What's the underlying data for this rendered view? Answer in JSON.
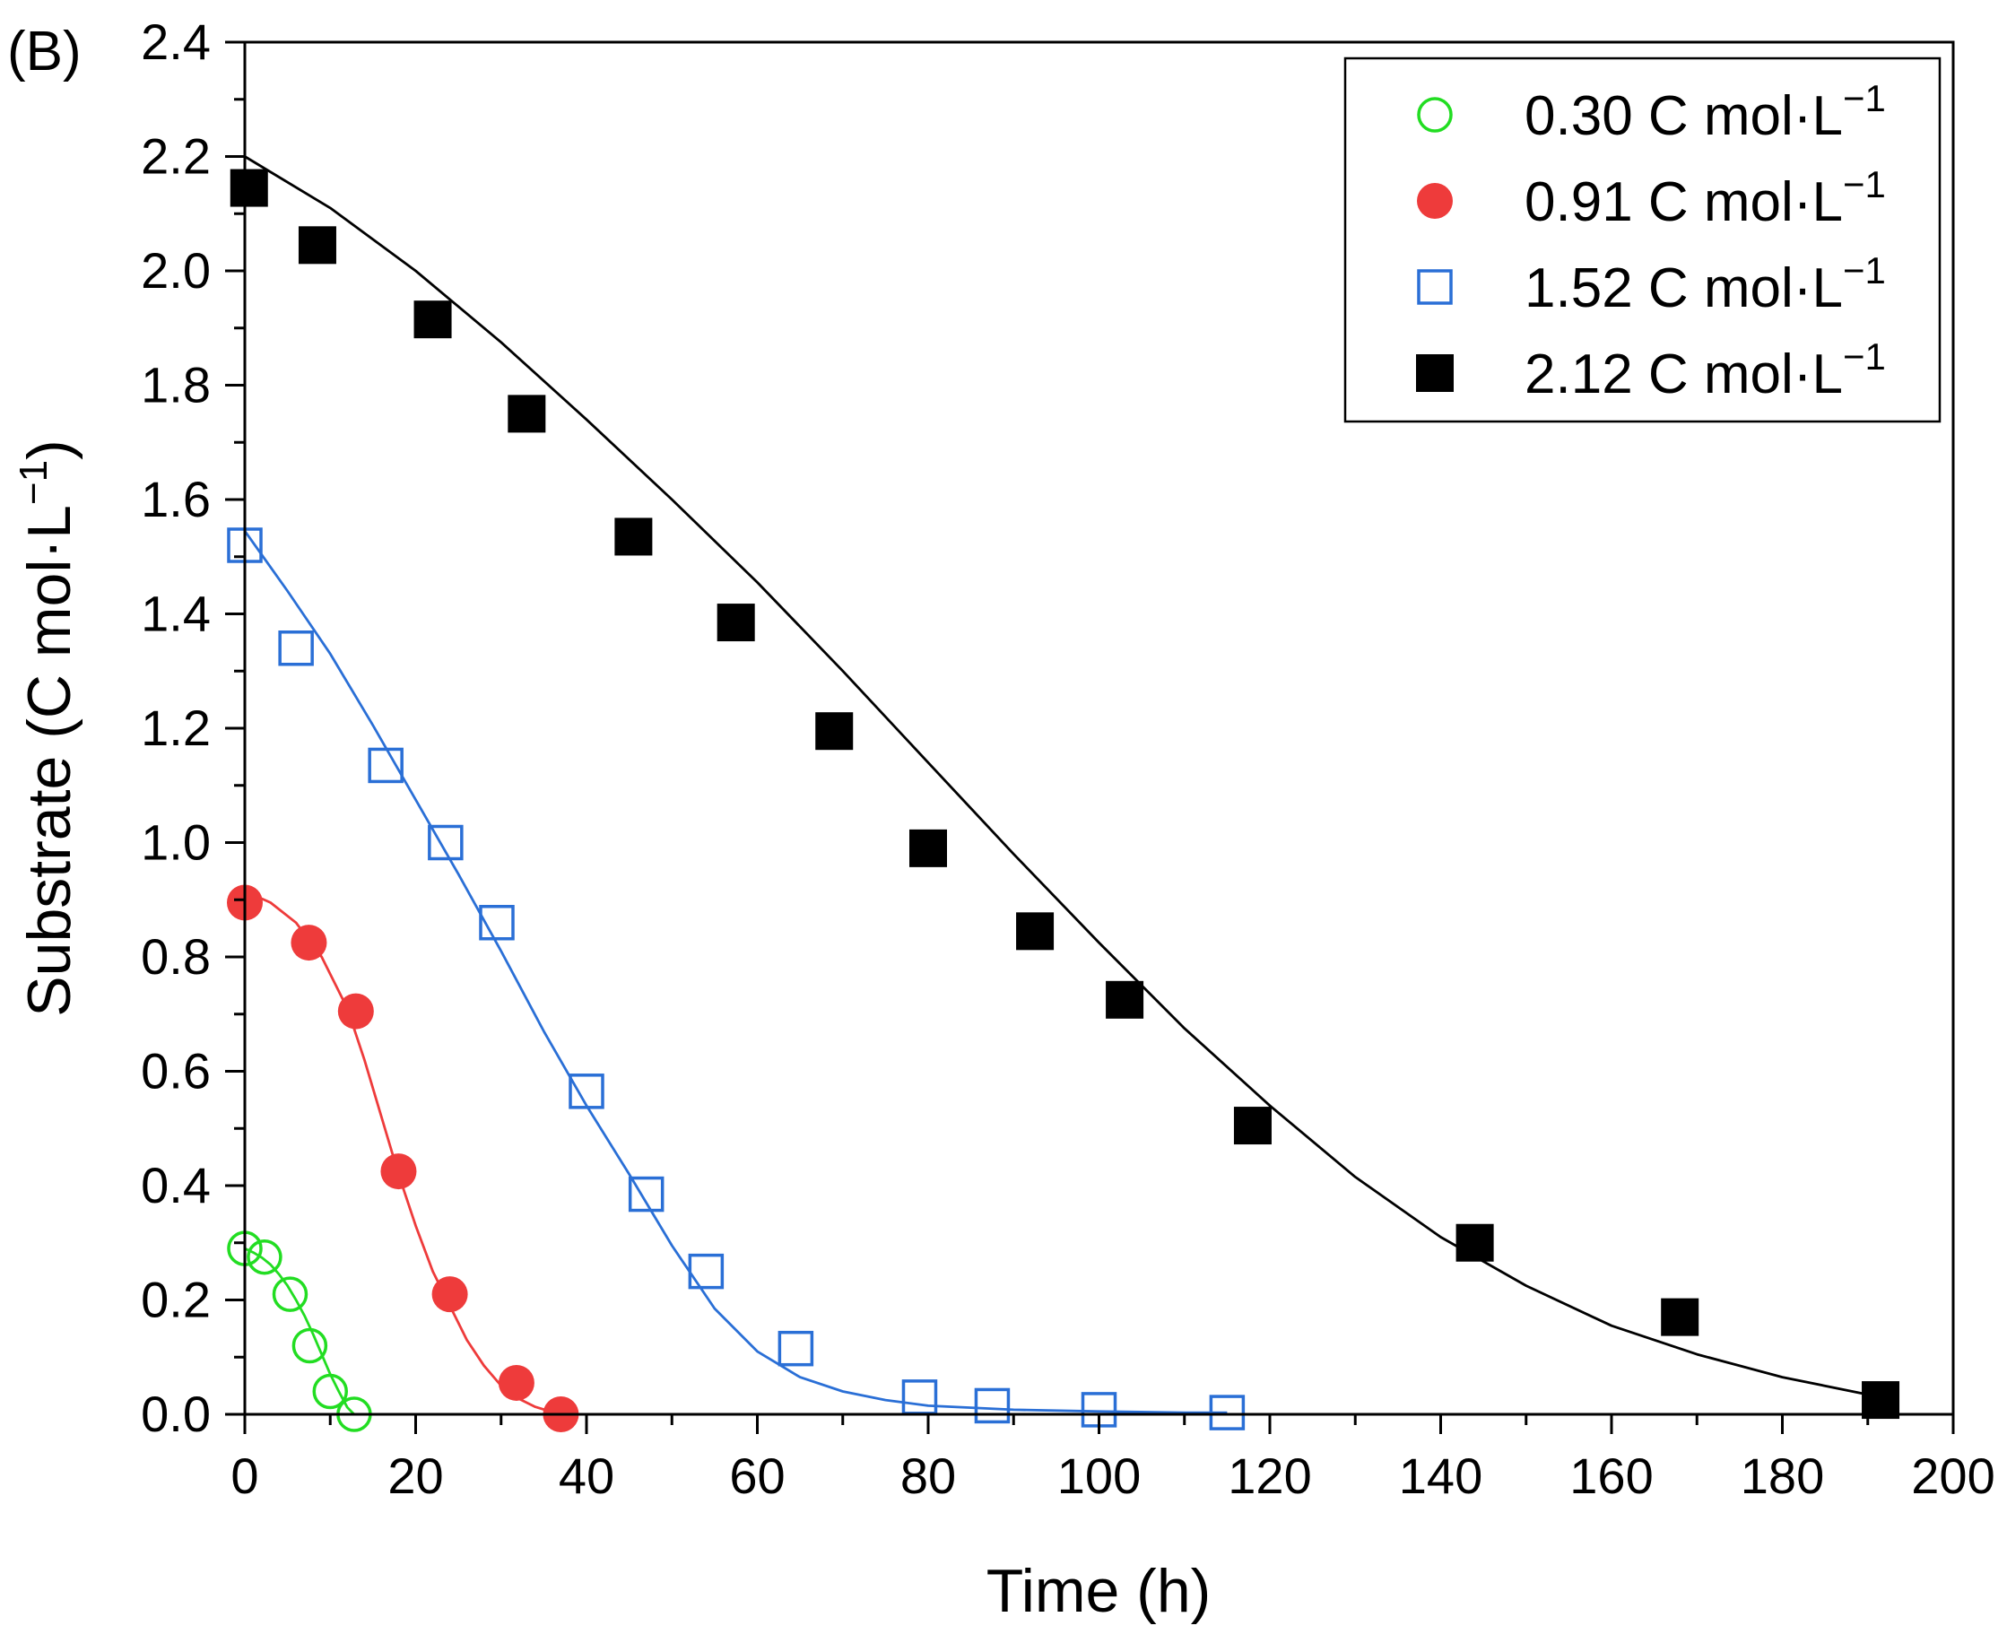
{
  "panel_label": "(B)",
  "chart_data": {
    "type": "scatter",
    "xlabel": "Time (h)",
    "ylabel": "Substrate (C mol·L",
    "ylabel_sup": "−1",
    "ylabel_close": ")",
    "xlim": [
      0,
      200
    ],
    "ylim": [
      0,
      2.4
    ],
    "xticks": [
      0,
      20,
      40,
      60,
      80,
      100,
      120,
      140,
      160,
      180,
      200
    ],
    "xtick_labels": [
      "0",
      "20",
      "40",
      "60",
      "80",
      "100",
      "120",
      "140",
      "160",
      "180",
      "200"
    ],
    "yticks": [
      0,
      0.2,
      0.4,
      0.6,
      0.8,
      1.0,
      1.2,
      1.4,
      1.6,
      1.8,
      2.0,
      2.2,
      2.4
    ],
    "ytick_labels": [
      "0.0",
      "0.2",
      "0.4",
      "0.6",
      "0.8",
      "1.0",
      "1.2",
      "1.4",
      "1.6",
      "1.8",
      "2.0",
      "2.2",
      "2.4"
    ],
    "grid": false,
    "legend_position": "top-right",
    "series": [
      {
        "name": "0.30 C mol·L",
        "name_sup": "−1",
        "marker": "open-circle",
        "color": "#22dd22",
        "x": [
          0,
          2.3,
          5.3,
          7.6,
          10,
          12.8
        ],
        "y": [
          0.29,
          0.275,
          0.21,
          0.12,
          0.04,
          0.0
        ],
        "fit": {
          "x": [
            0,
            1,
            2,
            3,
            4,
            5,
            6,
            7,
            8,
            9,
            10,
            11,
            12,
            12.8
          ],
          "y": [
            0.29,
            0.283,
            0.274,
            0.262,
            0.245,
            0.225,
            0.2,
            0.172,
            0.14,
            0.105,
            0.07,
            0.04,
            0.012,
            0.0
          ]
        }
      },
      {
        "name": "0.91 C mol·L",
        "name_sup": "−1",
        "marker": "filled-circle",
        "color": "#ee3b3b",
        "x": [
          0,
          7.5,
          13,
          18,
          24,
          31.8,
          37
        ],
        "y": [
          0.895,
          0.825,
          0.705,
          0.425,
          0.21,
          0.055,
          0.0
        ],
        "fit": {
          "x": [
            0,
            3,
            6,
            9,
            12,
            14,
            16,
            18,
            20,
            22,
            24,
            26,
            28,
            30,
            32,
            34,
            36,
            37.5
          ],
          "y": [
            0.915,
            0.895,
            0.86,
            0.8,
            0.71,
            0.62,
            0.52,
            0.42,
            0.33,
            0.25,
            0.19,
            0.13,
            0.085,
            0.05,
            0.028,
            0.013,
            0.004,
            0.0
          ]
        }
      },
      {
        "name": "1.52 C mol·L",
        "name_sup": "−1",
        "marker": "open-square",
        "color": "#2a6fd6",
        "x": [
          0,
          6,
          16.5,
          23.5,
          29.5,
          40,
          47,
          54,
          64.5,
          79,
          87.5,
          100,
          115
        ],
        "y": [
          1.52,
          1.34,
          1.135,
          1.0,
          0.86,
          0.565,
          0.385,
          0.25,
          0.115,
          0.03,
          0.015,
          0.008,
          0.003
        ],
        "fit": {
          "x": [
            0,
            5,
            10,
            15,
            20,
            25,
            30,
            35,
            40,
            45,
            50,
            55,
            60,
            65,
            70,
            75,
            80,
            90,
            100,
            110,
            115
          ],
          "y": [
            1.545,
            1.44,
            1.33,
            1.205,
            1.075,
            0.945,
            0.81,
            0.67,
            0.54,
            0.42,
            0.295,
            0.185,
            0.11,
            0.065,
            0.04,
            0.025,
            0.015,
            0.008,
            0.005,
            0.003,
            0.003
          ]
        }
      },
      {
        "name": "2.12 C mol·L",
        "name_sup": "−1",
        "marker": "filled-square",
        "color": "#000000",
        "x": [
          0.5,
          8.5,
          22,
          33,
          45.5,
          57.5,
          69,
          80,
          92.5,
          103,
          118,
          144,
          168,
          191.5
        ],
        "y": [
          2.145,
          2.045,
          1.915,
          1.75,
          1.535,
          1.385,
          1.195,
          0.99,
          0.845,
          0.725,
          0.505,
          0.3,
          0.17,
          0.025
        ],
        "fit": {
          "x": [
            0,
            10,
            20,
            30,
            40,
            50,
            60,
            70,
            80,
            90,
            100,
            110,
            120,
            130,
            140,
            150,
            160,
            170,
            180,
            191.5
          ],
          "y": [
            2.2,
            2.11,
            2.0,
            1.875,
            1.74,
            1.6,
            1.455,
            1.3,
            1.14,
            0.98,
            0.825,
            0.675,
            0.54,
            0.415,
            0.31,
            0.225,
            0.155,
            0.105,
            0.065,
            0.03
          ]
        }
      }
    ]
  }
}
